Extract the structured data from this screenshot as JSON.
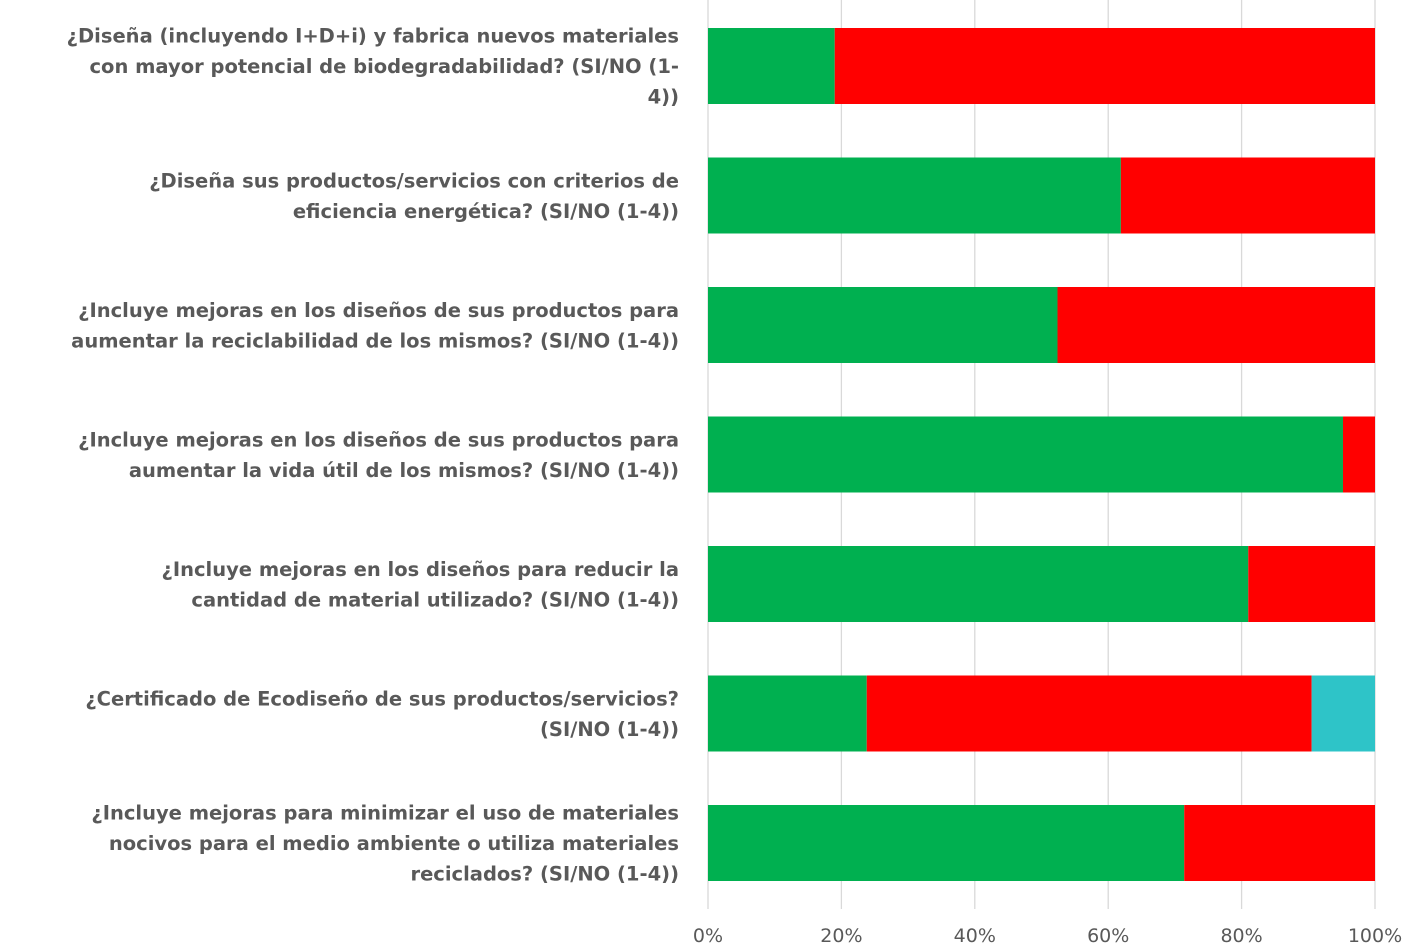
{
  "chart_data": {
    "type": "bar",
    "orientation": "horizontal",
    "stacked": "percent",
    "title": "",
    "xlabel": "",
    "ylabel": "",
    "xlim": [
      0,
      100
    ],
    "x_ticks": [
      "0%",
      "20%",
      "40%",
      "60%",
      "80%",
      "100%"
    ],
    "grid": true,
    "legend": "none",
    "categories": [
      [
        "¿Diseña (incluyendo I+D+i) y fabrica nuevos materiales",
        "con mayor potencial de biodegradabilidad? (SI/NO (1-",
        "4))"
      ],
      [
        "¿Diseña sus productos/servicios con criterios de",
        "eficiencia energética? (SI/NO (1-4))"
      ],
      [
        "¿Incluye mejoras en los diseños de sus productos para",
        "aumentar la reciclabilidad de los mismos? (SI/NO (1-4))"
      ],
      [
        "¿Incluye mejoras en los diseños de sus productos para",
        "aumentar la vida útil de los mismos? (SI/NO (1-4))"
      ],
      [
        "¿Incluye mejoras en los diseños para reducir la",
        "cantidad de material utilizado? (SI/NO (1-4))"
      ],
      [
        "¿Certificado de Ecodiseño de sus productos/servicios?",
        "(SI/NO (1-4))"
      ],
      [
        "¿Incluye mejoras para minimizar el uso de materiales",
        "nocivos para el medio ambiente o utiliza materiales",
        "reciclados? (SI/NO (1-4))"
      ]
    ],
    "series": [
      {
        "color": "#00b050",
        "values": [
          19.0,
          61.9,
          52.4,
          95.2,
          81.0,
          23.8,
          71.4
        ]
      },
      {
        "color": "#ff0000",
        "values": [
          81.0,
          38.1,
          47.6,
          4.8,
          19.0,
          66.7,
          28.6
        ]
      },
      {
        "color": "#2ec4c8",
        "values": [
          0,
          0,
          0,
          0,
          0,
          9.5,
          0
        ]
      }
    ]
  }
}
